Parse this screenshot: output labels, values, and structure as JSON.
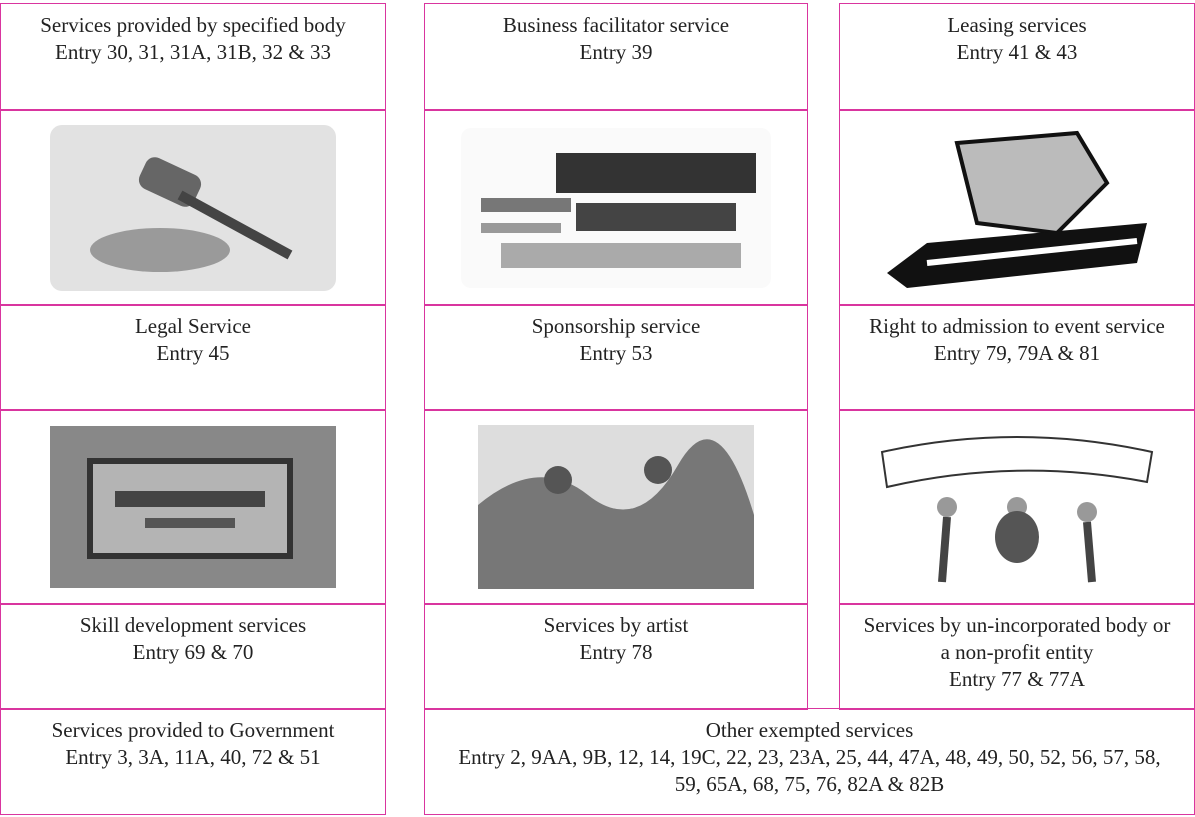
{
  "cells": [
    {
      "title": "Services provided by specified body",
      "entry": "Entry 30, 31, 31A, 31B, 32 & 33"
    },
    {
      "title": "Business facilitator service",
      "entry": "Entry 39"
    },
    {
      "title": "Leasing services",
      "entry": "Entry 41 & 43"
    },
    {
      "title": "Legal Service",
      "entry": "Entry 45"
    },
    {
      "title": "Sponsorship service",
      "entry": "Entry 53"
    },
    {
      "title": "Right to admission to event service",
      "entry": "Entry 79, 79A & 81"
    },
    {
      "title": "Skill development services",
      "entry": "Entry 69 & 70"
    },
    {
      "title": "Services by artist",
      "entry": "Entry 78"
    },
    {
      "title": "Services by un-incorporated body or a non-profit entity",
      "entry": "Entry 77 & 77A"
    },
    {
      "title": "Services provided to Government",
      "entry": "Entry 3, 3A, 11A, 40, 72 & 51"
    },
    {
      "title": "Other exempted services",
      "entry": "Entry 2, 9AA, 9B, 12, 14, 19C, 22, 23, 23A, 25, 44, 47A, 48, 49, 50, 52, 56, 57, 58, 59, 65A, 68, 75, 76, 82A & 82B"
    }
  ]
}
